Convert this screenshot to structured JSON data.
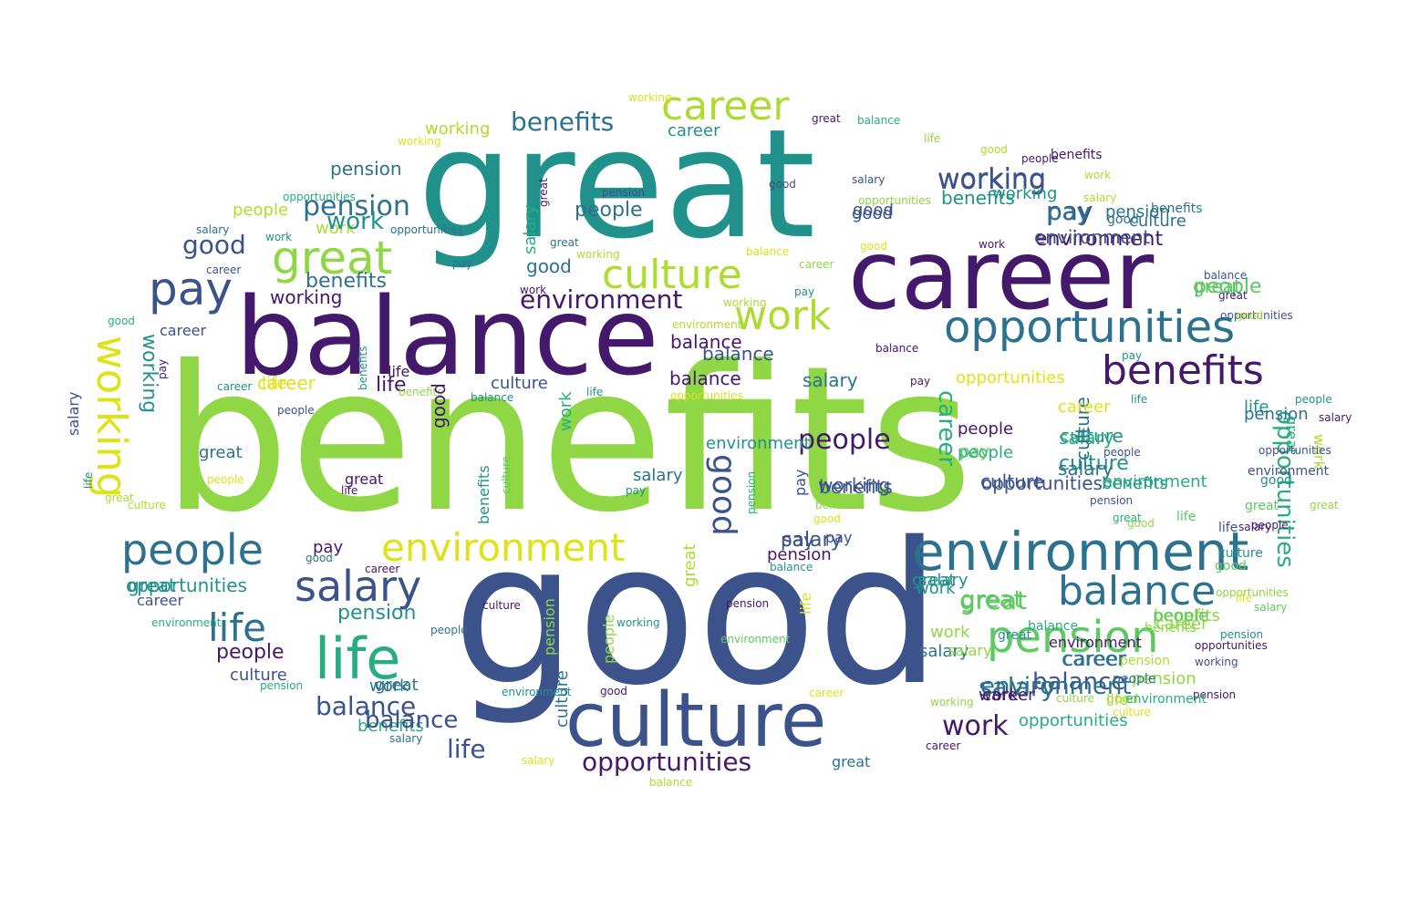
{
  "palette": {
    "purple": "#44186b",
    "indigo": "#3b528b",
    "blue": "#2c728e",
    "teal": "#21918c",
    "green": "#27ad81",
    "lightgreen": "#5ec962",
    "lime": "#8fd744",
    "yellowgreen": "#addc30",
    "yellow": "#dde318"
  },
  "words": [
    {
      "text": "benefits"
    },
    {
      "text": "good"
    },
    {
      "text": "great"
    },
    {
      "text": "balance"
    },
    {
      "text": "career"
    },
    {
      "text": "culture"
    },
    {
      "text": "environment"
    },
    {
      "text": "opportunities"
    },
    {
      "text": "pension"
    },
    {
      "text": "life"
    },
    {
      "text": "benefits"
    },
    {
      "text": "salary"
    },
    {
      "text": "people"
    },
    {
      "text": "environment"
    },
    {
      "text": "balance"
    },
    {
      "text": "working"
    },
    {
      "text": "great"
    },
    {
      "text": "pay"
    },
    {
      "text": "work"
    },
    {
      "text": "life"
    },
    {
      "text": "career"
    },
    {
      "text": "benefits"
    },
    {
      "text": "good"
    },
    {
      "text": "salary"
    },
    {
      "text": "opportunities"
    },
    {
      "text": "working"
    },
    {
      "text": "environment"
    },
    {
      "text": "balance"
    },
    {
      "text": "work"
    },
    {
      "text": "life"
    },
    {
      "text": "pension"
    },
    {
      "text": "great"
    },
    {
      "text": "people"
    },
    {
      "text": "pay"
    },
    {
      "text": "good"
    },
    {
      "text": "culture"
    },
    {
      "text": "benefits"
    },
    {
      "text": "environment"
    },
    {
      "text": "career"
    },
    {
      "text": "people"
    },
    {
      "text": "culture"
    },
    {
      "text": "pension"
    },
    {
      "text": "salary"
    },
    {
      "text": "working"
    },
    {
      "text": "opportunities"
    },
    {
      "text": "culture"
    },
    {
      "text": "benefits"
    },
    {
      "text": "working"
    },
    {
      "text": "good"
    },
    {
      "text": "pension"
    },
    {
      "text": "great"
    },
    {
      "text": "salary"
    },
    {
      "text": "people"
    },
    {
      "text": "balance"
    },
    {
      "text": "benefits"
    },
    {
      "text": "great"
    },
    {
      "text": "pension"
    },
    {
      "text": "opportunities"
    },
    {
      "text": "life"
    },
    {
      "text": "career"
    },
    {
      "text": "balance"
    },
    {
      "text": "working"
    },
    {
      "text": "benefits"
    },
    {
      "text": "people"
    },
    {
      "text": "culture"
    },
    {
      "text": "work"
    },
    {
      "text": "salary"
    },
    {
      "text": "people"
    },
    {
      "text": "good"
    },
    {
      "text": "career"
    },
    {
      "text": "pay"
    },
    {
      "text": "career"
    },
    {
      "text": "balance"
    },
    {
      "text": "environment"
    },
    {
      "text": "people"
    },
    {
      "text": "work"
    },
    {
      "text": "pension"
    },
    {
      "text": "benefits"
    },
    {
      "text": "life"
    },
    {
      "text": "culture"
    },
    {
      "text": "salary"
    },
    {
      "text": "culture"
    },
    {
      "text": "good"
    },
    {
      "text": "pay"
    },
    {
      "text": "working"
    },
    {
      "text": "great"
    },
    {
      "text": "people"
    },
    {
      "text": "great"
    },
    {
      "text": "opportunities"
    },
    {
      "text": "pension"
    },
    {
      "text": "work"
    },
    {
      "text": "balance"
    },
    {
      "text": "balance"
    },
    {
      "text": "career"
    },
    {
      "text": "work"
    },
    {
      "text": "environment"
    },
    {
      "text": "benefits"
    },
    {
      "text": "great"
    },
    {
      "text": "work"
    },
    {
      "text": "salary"
    },
    {
      "text": "life"
    },
    {
      "text": "culture"
    },
    {
      "text": "life"
    },
    {
      "text": "environment"
    },
    {
      "text": "pay"
    },
    {
      "text": "pay"
    },
    {
      "text": "life"
    },
    {
      "text": "people"
    },
    {
      "text": "working"
    },
    {
      "text": "opportunities"
    },
    {
      "text": "benefits"
    },
    {
      "text": "working"
    },
    {
      "text": "career"
    },
    {
      "text": "salary"
    },
    {
      "text": "opportunities"
    },
    {
      "text": "environment"
    },
    {
      "text": "good"
    },
    {
      "text": "salary"
    },
    {
      "text": "career"
    },
    {
      "text": "salary"
    },
    {
      "text": "balance"
    },
    {
      "text": "benefits"
    },
    {
      "text": "work"
    },
    {
      "text": "pension"
    },
    {
      "text": "career"
    },
    {
      "text": "culture"
    },
    {
      "text": "great"
    },
    {
      "text": "good"
    },
    {
      "text": "pension"
    },
    {
      "text": "culture"
    },
    {
      "text": "opportunities"
    },
    {
      "text": "environment"
    },
    {
      "text": "pension"
    },
    {
      "text": "environment"
    },
    {
      "text": "people"
    },
    {
      "text": "culture"
    },
    {
      "text": "benefits"
    },
    {
      "text": "opportunities"
    },
    {
      "text": "pension"
    },
    {
      "text": "working"
    },
    {
      "text": "life"
    },
    {
      "text": "salary"
    },
    {
      "text": "culture"
    },
    {
      "text": "life"
    },
    {
      "text": "life"
    },
    {
      "text": "salary"
    },
    {
      "text": "environment"
    },
    {
      "text": "work"
    },
    {
      "text": "great"
    },
    {
      "text": "salary"
    },
    {
      "text": "people"
    },
    {
      "text": "great"
    },
    {
      "text": "opportunities"
    },
    {
      "text": "good"
    },
    {
      "text": "people"
    },
    {
      "text": "great"
    },
    {
      "text": "opportunities"
    },
    {
      "text": "balance"
    },
    {
      "text": "great"
    },
    {
      "text": "good"
    },
    {
      "text": "pay"
    },
    {
      "text": "life"
    },
    {
      "text": "people"
    },
    {
      "text": "pension"
    },
    {
      "text": "great"
    },
    {
      "text": "good"
    },
    {
      "text": "career"
    },
    {
      "text": "work"
    },
    {
      "text": "salary"
    },
    {
      "text": "good"
    },
    {
      "text": "work"
    },
    {
      "text": "good"
    },
    {
      "text": "people"
    },
    {
      "text": "life"
    },
    {
      "text": "balance"
    },
    {
      "text": "great"
    },
    {
      "text": "good"
    },
    {
      "text": "opportunities"
    },
    {
      "text": "salary"
    },
    {
      "text": "good"
    },
    {
      "text": "pay"
    },
    {
      "text": "career"
    },
    {
      "text": "working"
    },
    {
      "text": "environment"
    },
    {
      "text": "balance"
    },
    {
      "text": "pension"
    },
    {
      "text": "great"
    },
    {
      "text": "working"
    },
    {
      "text": "work"
    },
    {
      "text": "pay"
    },
    {
      "text": "salary"
    },
    {
      "text": "great"
    },
    {
      "text": "balance"
    },
    {
      "text": "benefits"
    },
    {
      "text": "benefits"
    },
    {
      "text": "work"
    },
    {
      "text": "opportunities"
    },
    {
      "text": "opportunities"
    },
    {
      "text": "salary"
    },
    {
      "text": "career"
    },
    {
      "text": "good"
    },
    {
      "text": "career"
    },
    {
      "text": "pay"
    },
    {
      "text": "salary"
    },
    {
      "text": "life"
    },
    {
      "text": "great"
    },
    {
      "text": "culture"
    },
    {
      "text": "people"
    },
    {
      "text": "great"
    },
    {
      "text": "people"
    },
    {
      "text": "career"
    },
    {
      "text": "pay"
    },
    {
      "text": "good"
    },
    {
      "text": "career"
    },
    {
      "text": "life"
    },
    {
      "text": "great"
    },
    {
      "text": "good"
    },
    {
      "text": "benefits"
    },
    {
      "text": "culture"
    },
    {
      "text": "work"
    },
    {
      "text": "life"
    },
    {
      "text": "pay"
    },
    {
      "text": "opportunities"
    },
    {
      "text": "pension"
    },
    {
      "text": "pay"
    },
    {
      "text": "benefits"
    },
    {
      "text": "good"
    },
    {
      "text": "balance"
    },
    {
      "text": "life"
    },
    {
      "text": "career"
    },
    {
      "text": "environment"
    },
    {
      "text": "pension"
    },
    {
      "text": "working"
    },
    {
      "text": "people"
    },
    {
      "text": "culture"
    },
    {
      "text": "pension"
    },
    {
      "text": "great"
    },
    {
      "text": "good"
    },
    {
      "text": "environment"
    },
    {
      "text": "culture"
    },
    {
      "text": "people"
    },
    {
      "text": "salary"
    },
    {
      "text": "salary"
    },
    {
      "text": "balance"
    },
    {
      "text": "great"
    },
    {
      "text": "career"
    },
    {
      "text": "working"
    },
    {
      "text": "pension"
    },
    {
      "text": "environment"
    },
    {
      "text": "working"
    },
    {
      "text": "working"
    },
    {
      "text": "balance"
    },
    {
      "text": "pay"
    }
  ]
}
